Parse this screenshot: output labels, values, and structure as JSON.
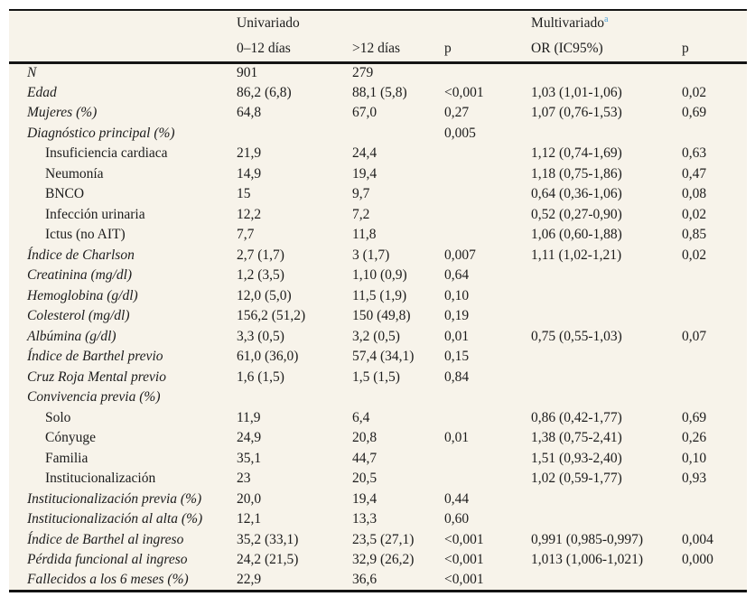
{
  "meta": {
    "accent_blue": "#4ba1d9",
    "table_background": "#f7f3ea",
    "rule_color": "#141414",
    "text_color": "#1c1c1c"
  },
  "table": {
    "group_header": {
      "univariado": "Univariado",
      "multivariado": "Multivariado",
      "multivariado_footnote_marker": "a"
    },
    "columns": {
      "c1": "0–12 días",
      "c2": ">12 días",
      "c3": "p",
      "c4": "OR (IC95%)",
      "c5": "p"
    },
    "rows": [
      {
        "label": "N",
        "sub": false,
        "v1": "901",
        "v2": "279",
        "p1": "",
        "or": "",
        "p2": ""
      },
      {
        "label": "Edad",
        "sub": false,
        "v1": "86,2 (6,8)",
        "v2": "88,1 (5,8)",
        "p1": "<0,001",
        "or": "1,03 (1,01-1,06)",
        "p2": "0,02"
      },
      {
        "label": "Mujeres (%)",
        "sub": false,
        "v1": "64,8",
        "v2": "67,0",
        "p1": "0,27",
        "or": "1,07 (0,76-1,53)",
        "p2": "0,69"
      },
      {
        "label": "Diagnóstico principal (%)",
        "sub": false,
        "v1": "",
        "v2": "",
        "p1": "0,005",
        "or": "",
        "p2": ""
      },
      {
        "label": "Insuficiencia cardiaca",
        "sub": true,
        "v1": "21,9",
        "v2": "24,4",
        "p1": "",
        "or": "1,12 (0,74-1,69)",
        "p2": "0,63"
      },
      {
        "label": "Neumonía",
        "sub": true,
        "v1": "14,9",
        "v2": "19,4",
        "p1": "",
        "or": "1,18 (0,75-1,86)",
        "p2": "0,47"
      },
      {
        "label": "BNCO",
        "sub": true,
        "v1": "15",
        "v2": "9,7",
        "p1": "",
        "or": "0,64 (0,36-1,06)",
        "p2": "0,08"
      },
      {
        "label": "Infección urinaria",
        "sub": true,
        "v1": "12,2",
        "v2": "7,2",
        "p1": "",
        "or": "0,52 (0,27-0,90)",
        "p2": "0,02"
      },
      {
        "label": "Ictus (no AIT)",
        "sub": true,
        "v1": "7,7",
        "v2": "11,8",
        "p1": "",
        "or": "1,06 (0,60-1,88)",
        "p2": "0,85"
      },
      {
        "label": "Índice de Charlson",
        "sub": false,
        "v1": "2,7 (1,7)",
        "v2": "3 (1,7)",
        "p1": "0,007",
        "or": "1,11 (1,02-1,21)",
        "p2": "0,02"
      },
      {
        "label": "Creatinina (mg/dl)",
        "sub": false,
        "v1": "1,2 (3,5)",
        "v2": "1,10 (0,9)",
        "p1": "0,64",
        "or": "",
        "p2": ""
      },
      {
        "label": "Hemoglobina (g/dl)",
        "sub": false,
        "v1": "12,0 (5,0)",
        "v2": "11,5 (1,9)",
        "p1": "0,10",
        "or": "",
        "p2": ""
      },
      {
        "label": "Colesterol (mg/dl)",
        "sub": false,
        "v1": "156,2 (51,2)",
        "v2": "150 (49,8)",
        "p1": "0,19",
        "or": "",
        "p2": ""
      },
      {
        "label": "Albúmina (g/dl)",
        "sub": false,
        "v1": "3,3 (0,5)",
        "v2": "3,2 (0,5)",
        "p1": "0,01",
        "or": "0,75 (0,55-1,03)",
        "p2": "0,07"
      },
      {
        "label": "Índice de Barthel previo",
        "sub": false,
        "v1": "61,0 (36,0)",
        "v2": "57,4 (34,1)",
        "p1": "0,15",
        "or": "",
        "p2": ""
      },
      {
        "label": "Cruz Roja Mental previo",
        "sub": false,
        "v1": "1,6 (1,5)",
        "v2": "1,5 (1,5)",
        "p1": "0,84",
        "or": "",
        "p2": ""
      },
      {
        "label": "Convivencia previa (%)",
        "sub": false,
        "v1": "",
        "v2": "",
        "p1": "",
        "or": "",
        "p2": ""
      },
      {
        "label": "Solo",
        "sub": true,
        "v1": "11,9",
        "v2": "6,4",
        "p1": "",
        "or": "0,86 (0,42-1,77)",
        "p2": "0,69"
      },
      {
        "label": "Cónyuge",
        "sub": true,
        "v1": "24,9",
        "v2": "20,8",
        "p1": "0,01",
        "or": "1,38 (0,75-2,41)",
        "p2": "0,26"
      },
      {
        "label": "Familia",
        "sub": true,
        "v1": "35,1",
        "v2": "44,7",
        "p1": "",
        "or": "1,51 (0,93-2,40)",
        "p2": "0,10"
      },
      {
        "label": "Institucionalización",
        "sub": true,
        "v1": "23",
        "v2": "20,5",
        "p1": "",
        "or": "1,02 (0,59-1,77)",
        "p2": "0,93"
      },
      {
        "label": "Institucionalización previa (%)",
        "sub": false,
        "v1": "20,0",
        "v2": "19,4",
        "p1": "0,44",
        "or": "",
        "p2": ""
      },
      {
        "label": "Institucionalización al alta (%)",
        "sub": false,
        "v1": "12,1",
        "v2": "13,3",
        "p1": "0,60",
        "or": "",
        "p2": ""
      },
      {
        "label": "Índice de Barthel al ingreso",
        "sub": false,
        "v1": "35,2 (33,1)",
        "v2": "23,5 (27,1)",
        "p1": "<0,001",
        "or": "0,991 (0,985-0,997)",
        "p2": "0,004"
      },
      {
        "label": "Pérdida funcional al ingreso",
        "sub": false,
        "v1": "24,2 (21,5)",
        "v2": "32,9 (26,2)",
        "p1": "<0,001",
        "or": "1,013 (1,006-1,021)",
        "p2": "0,000"
      },
      {
        "label": "Fallecidos a los 6 meses (%)",
        "sub": false,
        "v1": "22,9",
        "v2": "36,6",
        "p1": "<0,001",
        "or": "",
        "p2": ""
      }
    ]
  }
}
